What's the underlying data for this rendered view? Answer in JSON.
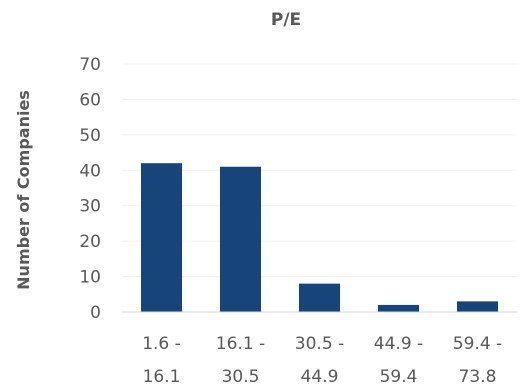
{
  "chart_data": {
    "type": "bar",
    "title": "P/E",
    "xlabel": "",
    "ylabel": "Number of Companies",
    "categories": [
      [
        "1.6 -",
        "16.1"
      ],
      [
        "16.1 -",
        "30.5"
      ],
      [
        "30.5 -",
        "44.9"
      ],
      [
        "44.9 -",
        "59.4"
      ],
      [
        "59.4 -",
        "73.8"
      ]
    ],
    "values": [
      42,
      41,
      8,
      2,
      3
    ],
    "ylim": [
      0,
      70
    ],
    "yticks": [
      0,
      10,
      20,
      30,
      40,
      50,
      60,
      70
    ],
    "grid": true,
    "bar_color": "#17457A"
  }
}
